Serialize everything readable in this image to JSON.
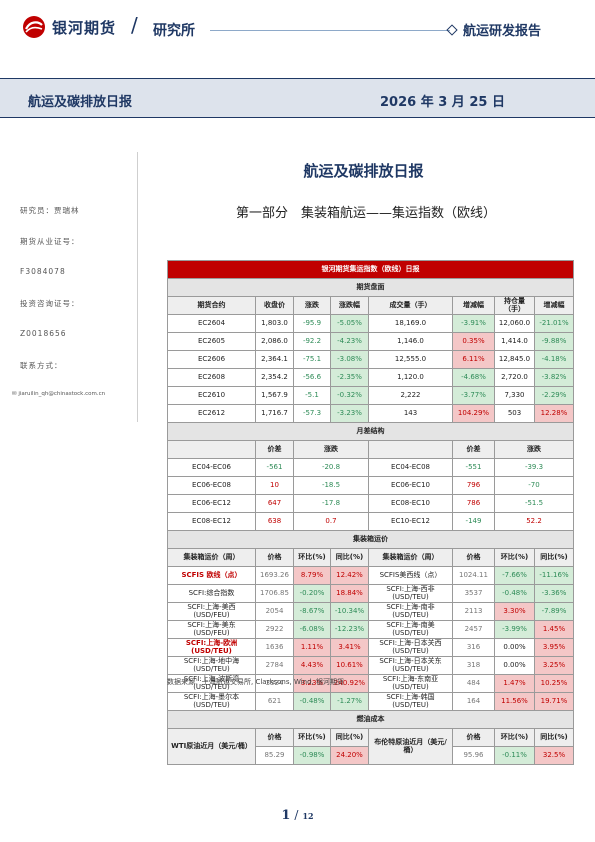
{
  "header": {
    "company": "银河期货",
    "department": "研究所",
    "report_type": "航运研发报告"
  },
  "band": {
    "title": "航运及碳排放日报",
    "date": "2026 年 3 月 25 日"
  },
  "sidebar": {
    "researcher": "研究员：贾瑞林",
    "license_label": "期货从业证号：",
    "license_number": "F3084078",
    "advisor_label": "投资咨询证号：",
    "advisor_number": "Z0018656",
    "contact_label": "联系方式：",
    "email": "jiaruilin_qh@chinastock.com.cn"
  },
  "doc_title": "航运及碳排放日报",
  "section_title": "第一部分　集装箱航运——集运指数（欧线）",
  "table": {
    "title": "银河期货集运指数（欧线）日报",
    "s1": "期货盘面",
    "s1_headers": [
      "期货合约",
      "收盘价",
      "涨跌",
      "涨跌幅",
      "成交量（手）",
      "增减幅",
      "持仓量（手）",
      "增减幅"
    ],
    "futures": [
      [
        "EC2604",
        "1,803.0",
        "-95.9",
        "-5.05%",
        "18,169.0",
        "-3.91%",
        "12,060.0",
        "-21.01%"
      ],
      [
        "EC2605",
        "2,086.0",
        "-92.2",
        "-4.23%",
        "1,146.0",
        "0.35%",
        "1,414.0",
        "-9.88%"
      ],
      [
        "EC2606",
        "2,364.1",
        "-75.1",
        "-3.08%",
        "12,555.0",
        "6.11%",
        "12,845.0",
        "-4.18%"
      ],
      [
        "EC2608",
        "2,354.2",
        "-56.6",
        "-2.35%",
        "1,120.0",
        "-4.68%",
        "2,720.0",
        "-3.82%"
      ],
      [
        "EC2610",
        "1,567.9",
        "-5.1",
        "-0.32%",
        "2,222",
        "-3.77%",
        "7,330",
        "-2.29%"
      ],
      [
        "EC2612",
        "1,716.7",
        "-57.3",
        "-3.23%",
        "143",
        "104.29%",
        "503",
        "12.28%"
      ]
    ],
    "s2": "月差结构",
    "s2_headers": [
      "",
      "价差",
      "涨跌",
      "",
      "价差",
      "涨跌"
    ],
    "spreads": [
      [
        "EC04-EC06",
        "-561",
        "-20.8",
        "EC04-EC08",
        "-551",
        "-39.3"
      ],
      [
        "EC06-EC08",
        "10",
        "-18.5",
        "EC06-EC10",
        "796",
        "-70"
      ],
      [
        "EC06-EC12",
        "647",
        "-17.8",
        "EC08-EC10",
        "786",
        "-51.5"
      ],
      [
        "EC08-EC12",
        "638",
        "0.7",
        "EC10-EC12",
        "-149",
        "52.2"
      ]
    ],
    "s3": "集装箱运价",
    "s3_headers": [
      "集装箱运价（周）",
      "价格",
      "环比(%)",
      "同比(%)",
      "集装箱运价（周）",
      "价格",
      "环比(%)",
      "同比(%)"
    ],
    "freight": [
      [
        "SCFIS 欧线（点）",
        "1693.26",
        "8.79%",
        "12.42%",
        "SCFIS美西线（点）",
        "1024.11",
        "-7.66%",
        "-11.16%"
      ],
      [
        "SCFI:综合指数",
        "1706.85",
        "-0.20%",
        "18.84%",
        "SCFI:上海-西非(USD/TEU)",
        "3537",
        "-0.48%",
        "-3.36%"
      ],
      [
        "SCFI:上海-美西(USD/FEU)",
        "2054",
        "-8.67%",
        "-10.34%",
        "SCFI:上海-南非(USD/TEU)",
        "2113",
        "3.30%",
        "-7.89%"
      ],
      [
        "SCFI:上海-美东(USD/FEU)",
        "2922",
        "-6.08%",
        "-12.23%",
        "SCFI:上海-南美(USD/TEU)",
        "2457",
        "-3.99%",
        "1.45%"
      ],
      [
        "SCFI:上海-欧洲(USD/TEU)",
        "1636",
        "1.11%",
        "3.41%",
        "SCFI:上海-日本关西(USD/TEU)",
        "316",
        "0.00%",
        "3.95%"
      ],
      [
        "SCFI:上海-地中海(USD/TEU)",
        "2784",
        "4.43%",
        "10.61%",
        "SCFI:上海-日本关东(USD/TEU)",
        "318",
        "0.00%",
        "3.25%"
      ],
      [
        "SCFI:上海-波斯湾(USD/TEU)",
        "3324",
        "3.23%",
        "240.92%",
        "SCFI:上海-东南亚(USD/TEU)",
        "484",
        "1.47%",
        "10.25%"
      ],
      [
        "SCFI:上海-墨尔本(USD/TEU)",
        "621",
        "-0.48%",
        "-1.27%",
        "SCFI:上海-韩国(USD/TEU)",
        "164",
        "11.56%",
        "19.71%"
      ]
    ],
    "s4": "燃油成本",
    "fuel_headers": [
      "价格",
      "环比(%)",
      "同比(%)",
      "价格",
      "环比(%)",
      "同比(%)"
    ],
    "fuel_wti_label": "WTI原油近月（美元/桶）",
    "fuel_brent_label": "布伦特原油近月（美元/桶）",
    "fuel_values": [
      "85.29",
      "-0.98%",
      "24.20%",
      "95.96",
      "-0.11%",
      "32.5%"
    ]
  },
  "source": "数据来源：上海航运交易所, Clarksons, Wind, 银河期货",
  "page": {
    "current": "1",
    "total": "12"
  },
  "colors": {
    "brand": "#1f3864",
    "table_header": "#c00000",
    "up": "#c00000",
    "down": "#2e8b57"
  }
}
